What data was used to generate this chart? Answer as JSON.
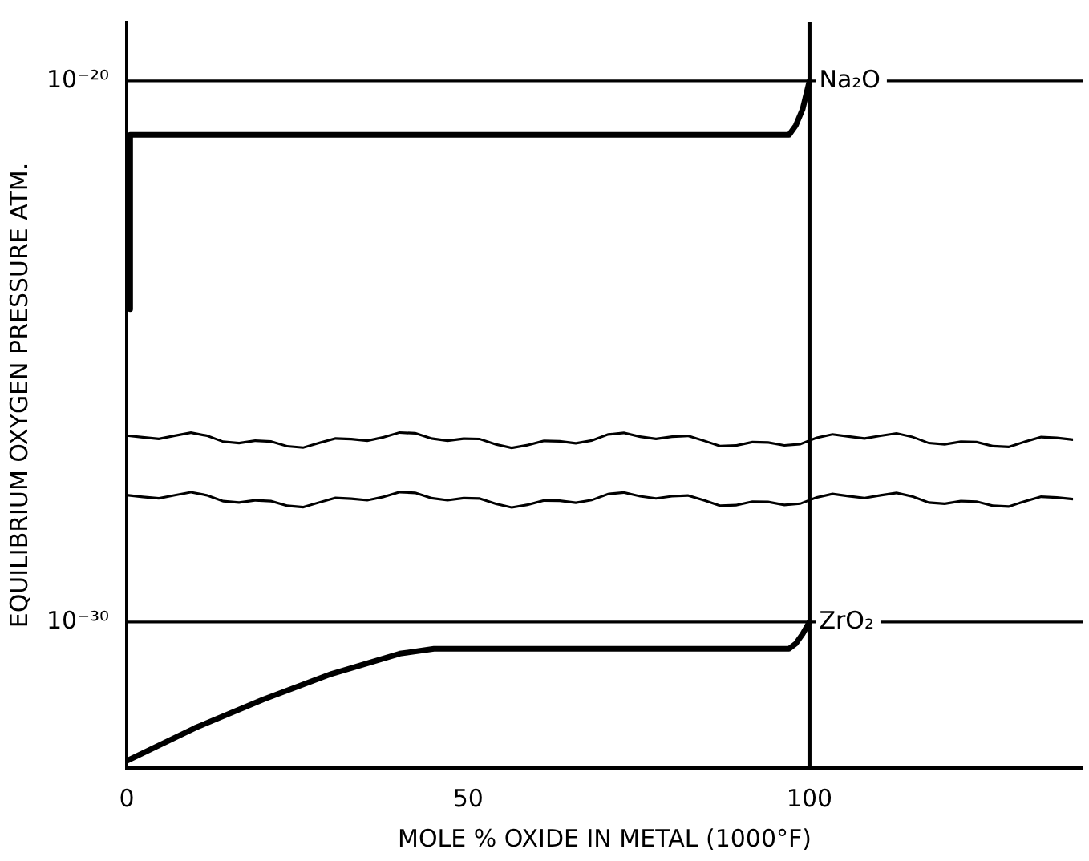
{
  "chart_data": {
    "type": "line",
    "xlabel": "MOLE % OXIDE IN METAL (1000°F)",
    "ylabel": "EQUILIBRIUM OXYGEN PRESSURE ATM.",
    "log": "y",
    "xlim": [
      0,
      140
    ],
    "xticks": [
      0,
      50,
      100
    ],
    "ylim": [
      2e-33,
      1.2e-19
    ],
    "yticks": [
      {
        "value": 1e-30,
        "label": "10⁻³⁰"
      },
      {
        "value": 1e-20,
        "label": "10⁻²⁰"
      }
    ],
    "grid": false,
    "legend": false,
    "marker": "none",
    "line_style": "solid",
    "series": [
      {
        "color": "#000000",
        "x": [
          0.5,
          0.5,
          97,
          98,
          99,
          100
        ],
        "values": [
          6e-25,
          1e-21,
          1e-21,
          1.5e-21,
          3e-21,
          1e-20
        ]
      },
      {
        "color": "#000000",
        "x": [
          0,
          10,
          20,
          30,
          40,
          45,
          97,
          98,
          99,
          100
        ],
        "values": [
          2.7e-33,
          1.1e-32,
          3.7e-32,
          1.1e-31,
          2.6e-31,
          3.2e-31,
          3.2e-31,
          4e-31,
          6e-31,
          1e-30
        ]
      }
    ],
    "ref_lines": [
      {
        "axis": "y",
        "value": 1e-20,
        "label": "Na₂O"
      },
      {
        "axis": "y",
        "value": 1e-30,
        "label": "ZrO₂"
      },
      {
        "axis": "x",
        "value": 100
      }
    ]
  }
}
